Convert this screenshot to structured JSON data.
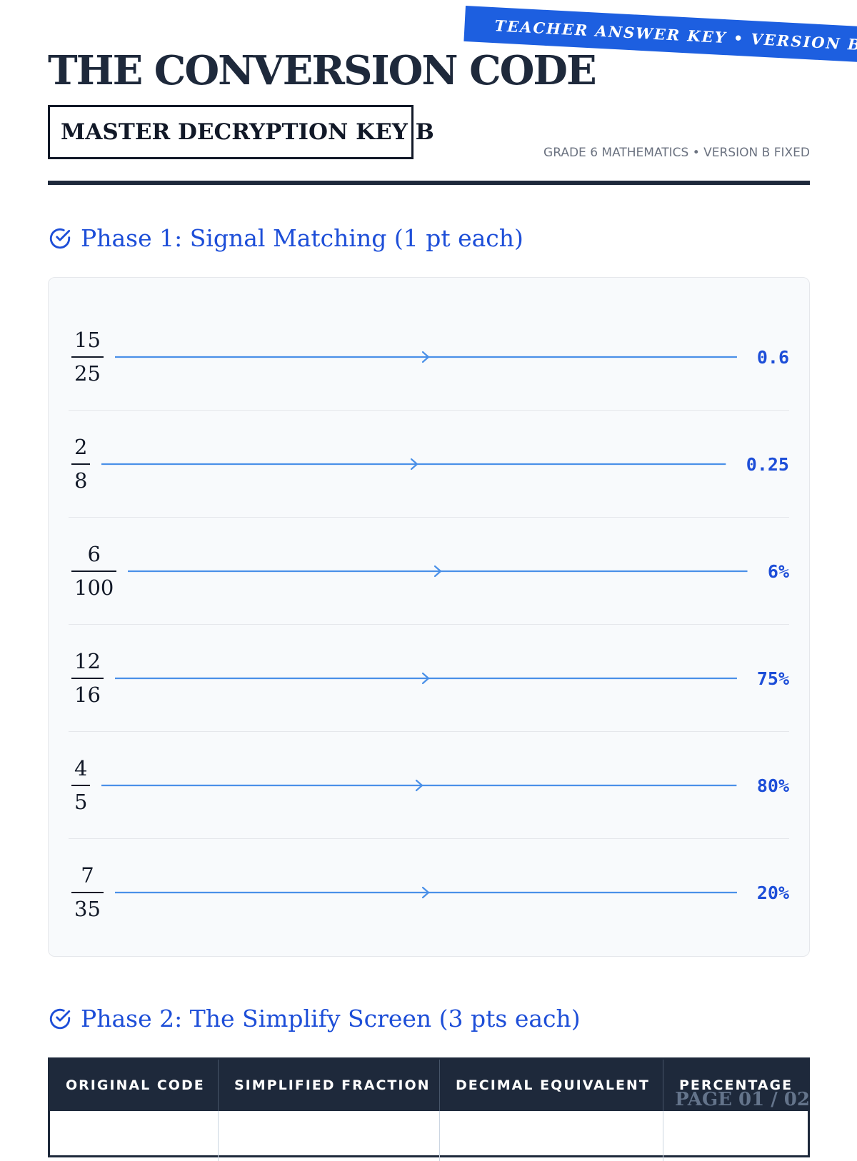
{
  "ribbon": "TEACHER ANSWER KEY • VERSION B",
  "header": {
    "title": "THE CONVERSION CODE",
    "subtitle": "MASTER DECRYPTION KEY B",
    "meta": "GRADE 6 MATHEMATICS • VERSION B FIXED"
  },
  "phase1": {
    "heading": "Phase 1: Signal Matching (1 pt each)",
    "rows": [
      {
        "numerator": "15",
        "denominator": "25",
        "answer": "0.6"
      },
      {
        "numerator": "2",
        "denominator": "8",
        "answer": "0.25"
      },
      {
        "numerator": "6",
        "denominator": "100",
        "answer": "6%"
      },
      {
        "numerator": "12",
        "denominator": "16",
        "answer": "75%"
      },
      {
        "numerator": "4",
        "denominator": "5",
        "answer": "80%"
      },
      {
        "numerator": "7",
        "denominator": "35",
        "answer": "20%"
      }
    ]
  },
  "phase2": {
    "heading": "Phase 2: The Simplify Screen (3 pts each)",
    "columns": [
      "ORIGINAL CODE",
      "SIMPLIFIED FRACTION",
      "DECIMAL EQUIVALENT",
      "PERCENTAGE"
    ]
  },
  "footer": {
    "page": "PAGE 01 / 02"
  },
  "colors": {
    "accent": "#1d4ed8",
    "ribbon": "#1d5fe0",
    "dark": "#1e293b",
    "line": "#3b82f6"
  }
}
